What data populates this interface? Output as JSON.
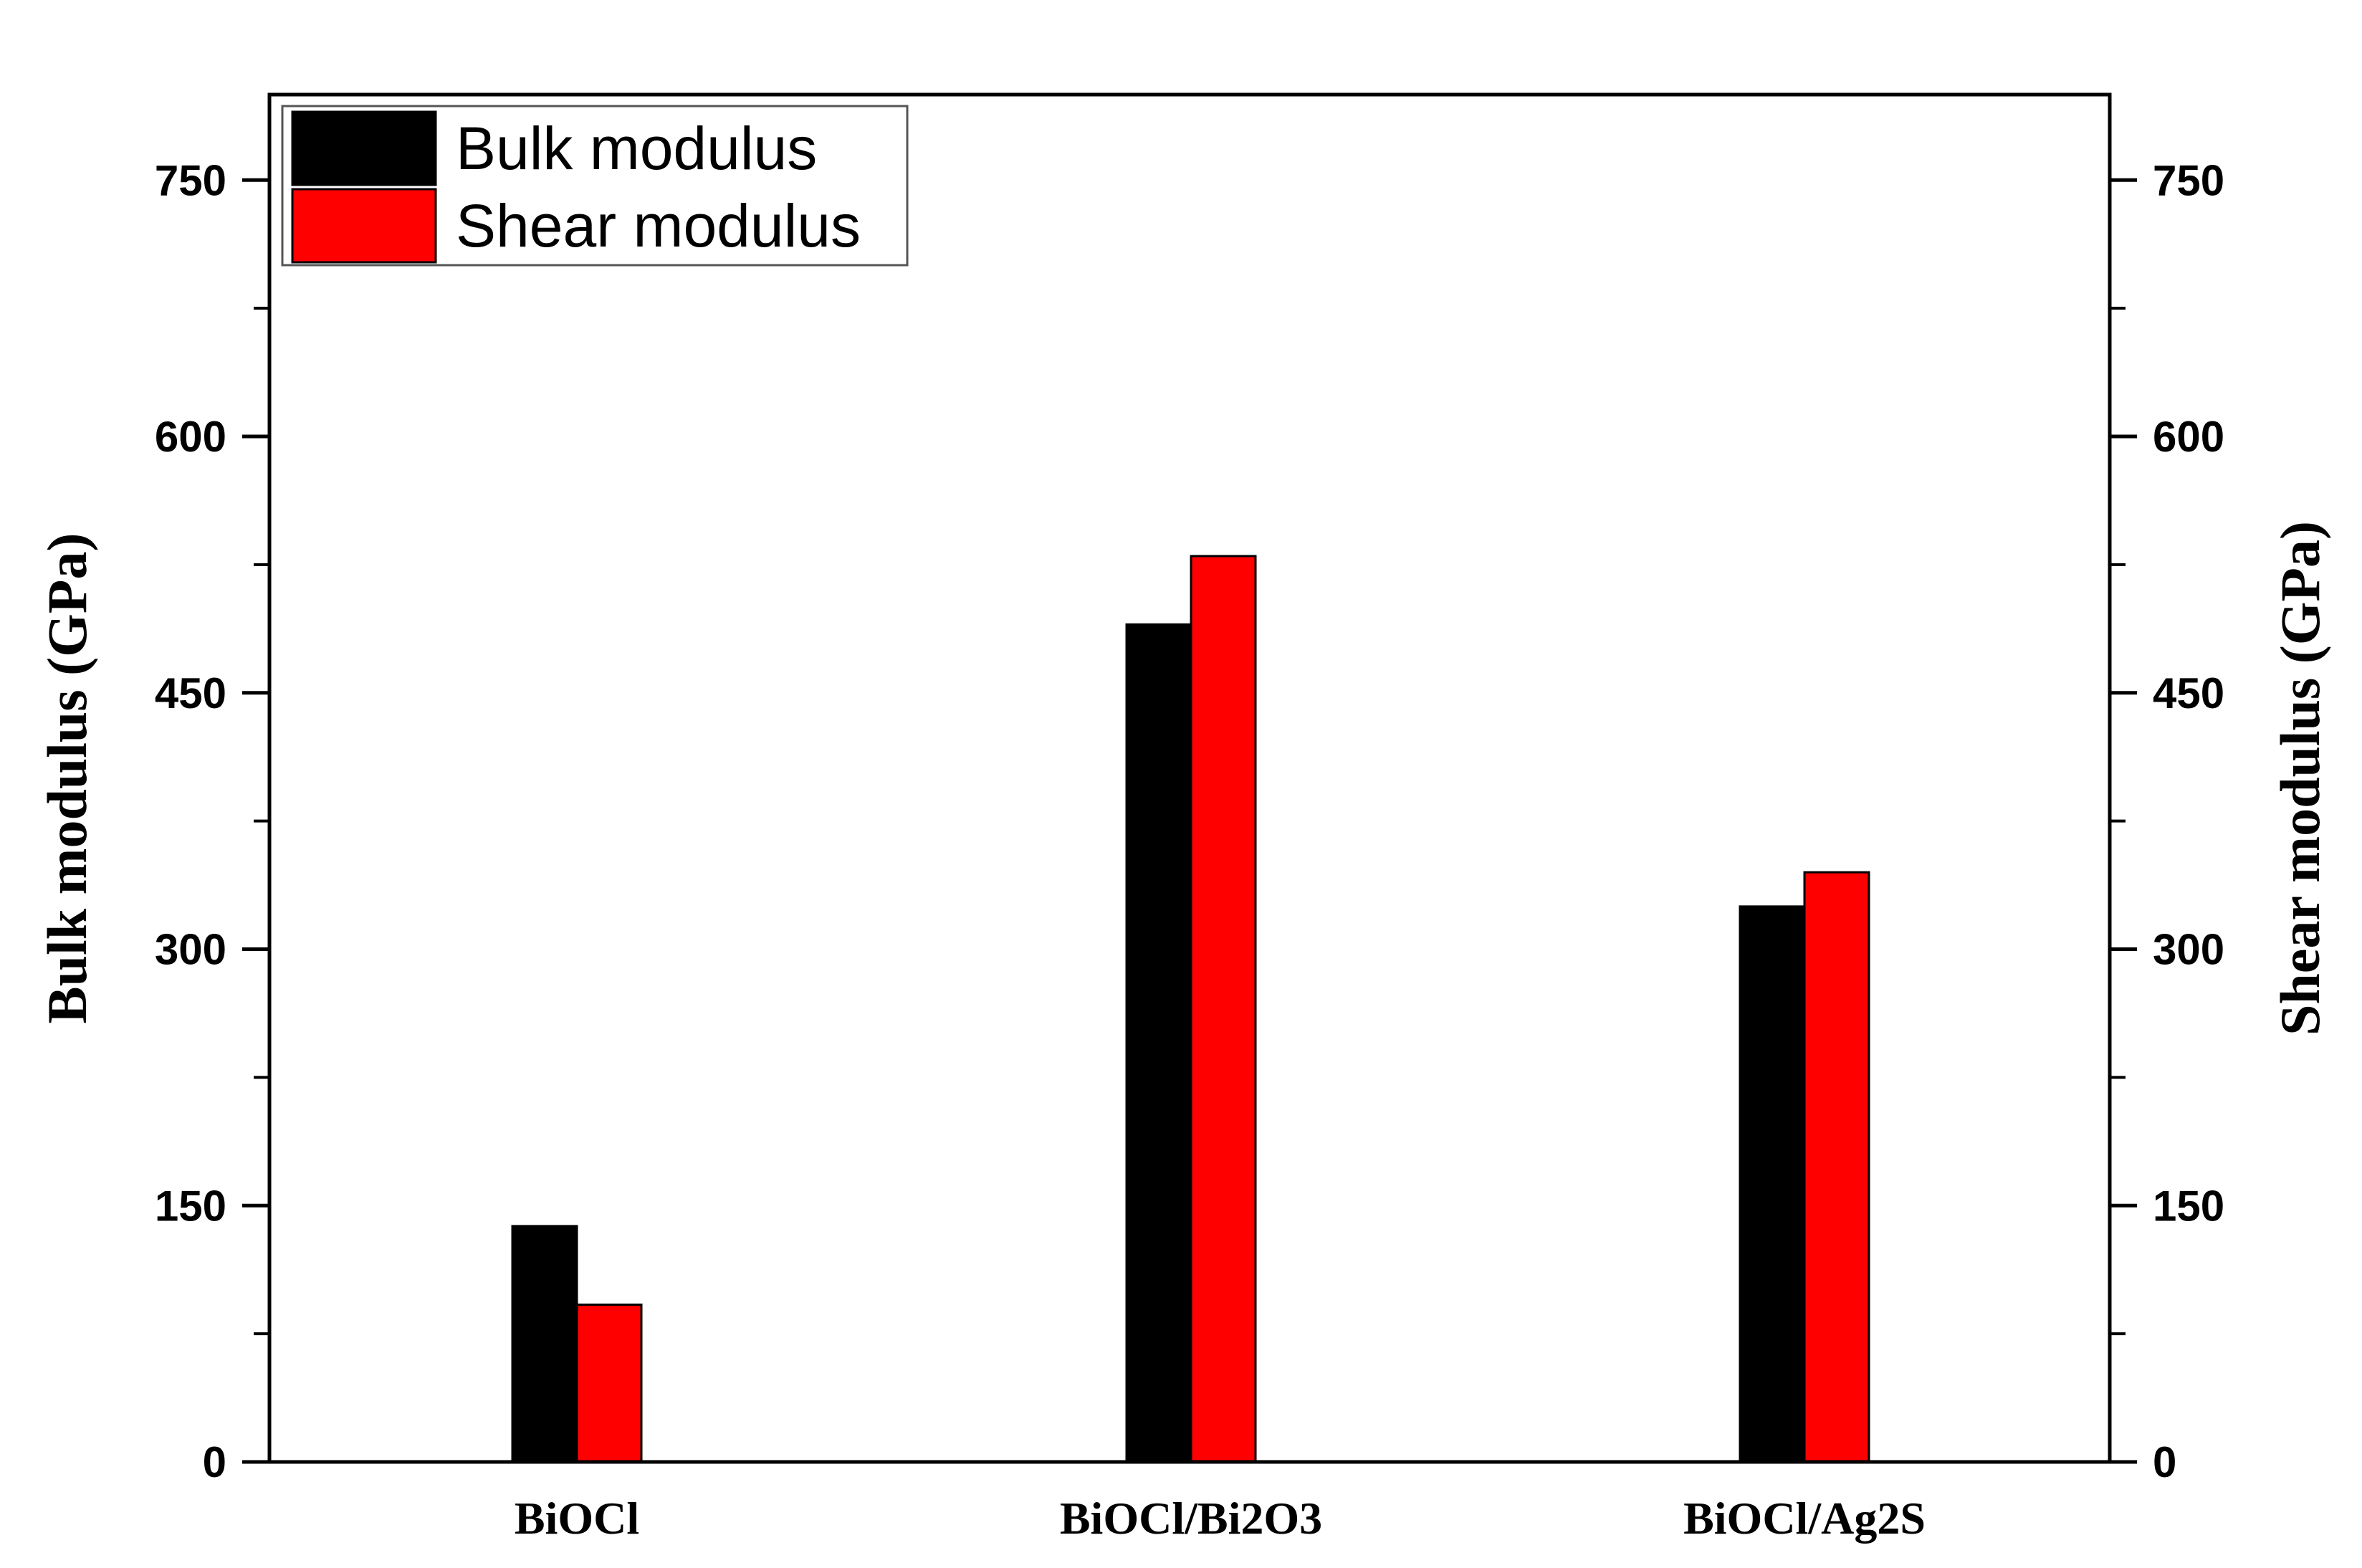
{
  "chart_data": {
    "type": "bar",
    "categories": [
      "BiOCl",
      "BiOCl/Bi2O3",
      "BiOCl/Ag2S"
    ],
    "series": [
      {
        "name": "Bulk modulus",
        "values": [
          138,
          490,
          325
        ],
        "color": "#000000",
        "axis": "left"
      },
      {
        "name": "Shear modulus",
        "values": [
          92,
          530,
          345
        ],
        "color": "#ff0000",
        "axis": "right"
      }
    ],
    "ylabel_left": "Bulk modulus (GPa)",
    "ylabel_right": "Shear modulus (GPa)",
    "ylim": [
      0,
      800
    ],
    "yticks": [
      0,
      150,
      300,
      450,
      600,
      750
    ],
    "ytick_labels": [
      "0",
      "150",
      "300",
      "450",
      "600",
      "750"
    ],
    "minor_ticks": true,
    "grid": false,
    "legend_position": "top-left"
  }
}
